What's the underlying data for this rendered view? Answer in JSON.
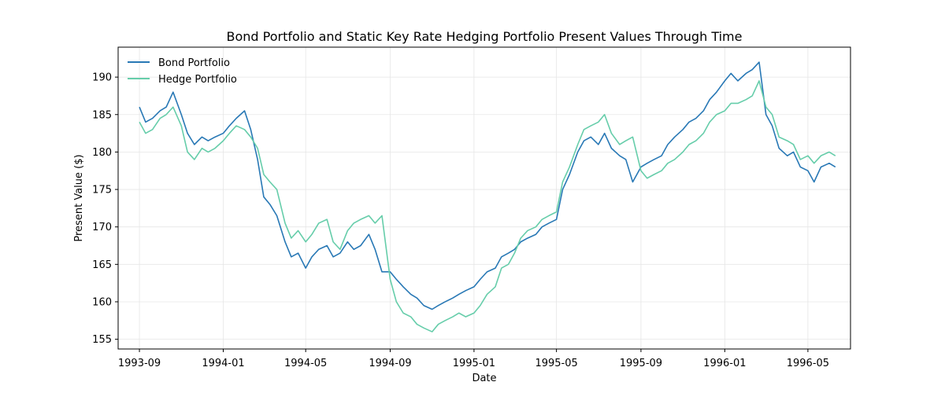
{
  "chart_data": {
    "type": "line",
    "title": "Bond Portfolio and Static Key Rate Hedging Portfolio Present Values Through Time",
    "xlabel": "Date",
    "ylabel": "Present Value ($)",
    "x_ticks": [
      "1993-09",
      "1994-01",
      "1994-05",
      "1994-09",
      "1995-01",
      "1995-05",
      "1995-09",
      "1996-01",
      "1996-05"
    ],
    "y_ticks": [
      155,
      160,
      165,
      170,
      175,
      180,
      185,
      190
    ],
    "xlim": [
      "1993-08-01",
      "1996-07-02"
    ],
    "ylim": [
      153.7,
      194.0
    ],
    "grid": true,
    "legend_position": "top-left",
    "series": [
      {
        "name": "Bond Portfolio",
        "color": "#2878b5",
        "points": [
          [
            "1993-09-01",
            186.0
          ],
          [
            "1993-09-10",
            184.0
          ],
          [
            "1993-09-20",
            184.5
          ],
          [
            "1993-10-01",
            185.5
          ],
          [
            "1993-10-10",
            186.0
          ],
          [
            "1993-10-20",
            188.0
          ],
          [
            "1993-11-01",
            185.0
          ],
          [
            "1993-11-10",
            182.5
          ],
          [
            "1993-11-20",
            181.0
          ],
          [
            "1993-12-01",
            182.0
          ],
          [
            "1993-12-10",
            181.5
          ],
          [
            "1993-12-20",
            182.0
          ],
          [
            "1994-01-01",
            182.5
          ],
          [
            "1994-01-10",
            183.5
          ],
          [
            "1994-01-20",
            184.5
          ],
          [
            "1994-02-01",
            185.5
          ],
          [
            "1994-02-10",
            183.0
          ],
          [
            "1994-02-20",
            179.0
          ],
          [
            "1994-03-01",
            174.0
          ],
          [
            "1994-03-10",
            173.0
          ],
          [
            "1994-03-20",
            171.5
          ],
          [
            "1994-04-01",
            168.0
          ],
          [
            "1994-04-10",
            166.0
          ],
          [
            "1994-04-20",
            166.5
          ],
          [
            "1994-05-01",
            164.5
          ],
          [
            "1994-05-10",
            166.0
          ],
          [
            "1994-05-20",
            167.0
          ],
          [
            "1994-06-01",
            167.5
          ],
          [
            "1994-06-10",
            166.0
          ],
          [
            "1994-06-20",
            166.5
          ],
          [
            "1994-07-01",
            168.0
          ],
          [
            "1994-07-10",
            167.0
          ],
          [
            "1994-07-20",
            167.5
          ],
          [
            "1994-08-01",
            169.0
          ],
          [
            "1994-08-10",
            167.0
          ],
          [
            "1994-08-20",
            164.0
          ],
          [
            "1994-09-01",
            164.0
          ],
          [
            "1994-09-10",
            163.0
          ],
          [
            "1994-09-20",
            162.0
          ],
          [
            "1994-10-01",
            161.0
          ],
          [
            "1994-10-10",
            160.5
          ],
          [
            "1994-10-20",
            159.5
          ],
          [
            "1994-11-01",
            159.0
          ],
          [
            "1994-11-10",
            159.5
          ],
          [
            "1994-11-20",
            160.0
          ],
          [
            "1994-12-01",
            160.5
          ],
          [
            "1994-12-10",
            161.0
          ],
          [
            "1994-12-20",
            161.5
          ],
          [
            "1995-01-01",
            162.0
          ],
          [
            "1995-01-10",
            163.0
          ],
          [
            "1995-01-20",
            164.0
          ],
          [
            "1995-02-01",
            164.5
          ],
          [
            "1995-02-10",
            166.0
          ],
          [
            "1995-02-20",
            166.5
          ],
          [
            "1995-03-01",
            167.0
          ],
          [
            "1995-03-10",
            168.0
          ],
          [
            "1995-03-20",
            168.5
          ],
          [
            "1995-04-01",
            169.0
          ],
          [
            "1995-04-10",
            170.0
          ],
          [
            "1995-04-20",
            170.5
          ],
          [
            "1995-05-01",
            171.0
          ],
          [
            "1995-05-10",
            175.0
          ],
          [
            "1995-05-20",
            177.0
          ],
          [
            "1995-06-01",
            180.0
          ],
          [
            "1995-06-10",
            181.5
          ],
          [
            "1995-06-20",
            182.0
          ],
          [
            "1995-07-01",
            181.0
          ],
          [
            "1995-07-10",
            182.5
          ],
          [
            "1995-07-20",
            180.5
          ],
          [
            "1995-08-01",
            179.5
          ],
          [
            "1995-08-10",
            179.0
          ],
          [
            "1995-08-20",
            176.0
          ],
          [
            "1995-09-01",
            178.0
          ],
          [
            "1995-09-10",
            178.5
          ],
          [
            "1995-09-20",
            179.0
          ],
          [
            "1995-10-01",
            179.5
          ],
          [
            "1995-10-10",
            181.0
          ],
          [
            "1995-10-20",
            182.0
          ],
          [
            "1995-11-01",
            183.0
          ],
          [
            "1995-11-10",
            184.0
          ],
          [
            "1995-11-20",
            184.5
          ],
          [
            "1995-12-01",
            185.5
          ],
          [
            "1995-12-10",
            187.0
          ],
          [
            "1995-12-20",
            188.0
          ],
          [
            "1996-01-01",
            189.5
          ],
          [
            "1996-01-10",
            190.5
          ],
          [
            "1996-01-20",
            189.5
          ],
          [
            "1996-02-01",
            190.5
          ],
          [
            "1996-02-10",
            191.0
          ],
          [
            "1996-02-20",
            192.0
          ],
          [
            "1996-03-01",
            185.0
          ],
          [
            "1996-03-10",
            183.5
          ],
          [
            "1996-03-20",
            180.5
          ],
          [
            "1996-04-01",
            179.5
          ],
          [
            "1996-04-10",
            180.0
          ],
          [
            "1996-04-20",
            178.0
          ],
          [
            "1996-05-01",
            177.5
          ],
          [
            "1996-05-10",
            176.0
          ],
          [
            "1996-05-20",
            178.0
          ],
          [
            "1996-06-01",
            178.5
          ],
          [
            "1996-06-10",
            178.0
          ]
        ]
      },
      {
        "name": "Hedge Portfolio",
        "color": "#66cdaa",
        "points": [
          [
            "1993-09-01",
            184.0
          ],
          [
            "1993-09-10",
            182.5
          ],
          [
            "1993-09-20",
            183.0
          ],
          [
            "1993-10-01",
            184.5
          ],
          [
            "1993-10-10",
            185.0
          ],
          [
            "1993-10-20",
            186.0
          ],
          [
            "1993-11-01",
            183.5
          ],
          [
            "1993-11-10",
            180.0
          ],
          [
            "1993-11-20",
            179.0
          ],
          [
            "1993-12-01",
            180.5
          ],
          [
            "1993-12-10",
            180.0
          ],
          [
            "1993-12-20",
            180.5
          ],
          [
            "1994-01-01",
            181.5
          ],
          [
            "1994-01-10",
            182.5
          ],
          [
            "1994-01-20",
            183.5
          ],
          [
            "1994-02-01",
            183.0
          ],
          [
            "1994-02-10",
            182.0
          ],
          [
            "1994-02-20",
            180.5
          ],
          [
            "1994-03-01",
            177.0
          ],
          [
            "1994-03-10",
            176.0
          ],
          [
            "1994-03-20",
            175.0
          ],
          [
            "1994-04-01",
            170.5
          ],
          [
            "1994-04-10",
            168.5
          ],
          [
            "1994-04-20",
            169.5
          ],
          [
            "1994-05-01",
            168.0
          ],
          [
            "1994-05-10",
            169.0
          ],
          [
            "1994-05-20",
            170.5
          ],
          [
            "1994-06-01",
            171.0
          ],
          [
            "1994-06-10",
            168.0
          ],
          [
            "1994-06-20",
            167.0
          ],
          [
            "1994-07-01",
            169.5
          ],
          [
            "1994-07-10",
            170.5
          ],
          [
            "1994-07-20",
            171.0
          ],
          [
            "1994-08-01",
            171.5
          ],
          [
            "1994-08-10",
            170.5
          ],
          [
            "1994-08-20",
            171.5
          ],
          [
            "1994-09-01",
            163.0
          ],
          [
            "1994-09-10",
            160.0
          ],
          [
            "1994-09-20",
            158.5
          ],
          [
            "1994-10-01",
            158.0
          ],
          [
            "1994-10-10",
            157.0
          ],
          [
            "1994-10-20",
            156.5
          ],
          [
            "1994-11-01",
            156.0
          ],
          [
            "1994-11-10",
            157.0
          ],
          [
            "1994-11-20",
            157.5
          ],
          [
            "1994-12-01",
            158.0
          ],
          [
            "1994-12-10",
            158.5
          ],
          [
            "1994-12-20",
            158.0
          ],
          [
            "1995-01-01",
            158.5
          ],
          [
            "1995-01-10",
            159.5
          ],
          [
            "1995-01-20",
            161.0
          ],
          [
            "1995-02-01",
            162.0
          ],
          [
            "1995-02-10",
            164.5
          ],
          [
            "1995-02-20",
            165.0
          ],
          [
            "1995-03-01",
            166.5
          ],
          [
            "1995-03-10",
            168.5
          ],
          [
            "1995-03-20",
            169.5
          ],
          [
            "1995-04-01",
            170.0
          ],
          [
            "1995-04-10",
            171.0
          ],
          [
            "1995-04-20",
            171.5
          ],
          [
            "1995-05-01",
            172.0
          ],
          [
            "1995-05-10",
            176.0
          ],
          [
            "1995-05-20",
            178.0
          ],
          [
            "1995-06-01",
            181.0
          ],
          [
            "1995-06-10",
            183.0
          ],
          [
            "1995-06-20",
            183.5
          ],
          [
            "1995-07-01",
            184.0
          ],
          [
            "1995-07-10",
            185.0
          ],
          [
            "1995-07-20",
            182.5
          ],
          [
            "1995-08-01",
            181.0
          ],
          [
            "1995-08-10",
            181.5
          ],
          [
            "1995-08-20",
            182.0
          ],
          [
            "1995-09-01",
            177.5
          ],
          [
            "1995-09-10",
            176.5
          ],
          [
            "1995-09-20",
            177.0
          ],
          [
            "1995-10-01",
            177.5
          ],
          [
            "1995-10-10",
            178.5
          ],
          [
            "1995-10-20",
            179.0
          ],
          [
            "1995-11-01",
            180.0
          ],
          [
            "1995-11-10",
            181.0
          ],
          [
            "1995-11-20",
            181.5
          ],
          [
            "1995-12-01",
            182.5
          ],
          [
            "1995-12-10",
            184.0
          ],
          [
            "1995-12-20",
            185.0
          ],
          [
            "1996-01-01",
            185.5
          ],
          [
            "1996-01-10",
            186.5
          ],
          [
            "1996-01-20",
            186.5
          ],
          [
            "1996-02-01",
            187.0
          ],
          [
            "1996-02-10",
            187.5
          ],
          [
            "1996-02-20",
            189.5
          ],
          [
            "1996-03-01",
            186.0
          ],
          [
            "1996-03-10",
            185.0
          ],
          [
            "1996-03-20",
            182.0
          ],
          [
            "1996-04-01",
            181.5
          ],
          [
            "1996-04-10",
            181.0
          ],
          [
            "1996-04-20",
            179.0
          ],
          [
            "1996-05-01",
            179.5
          ],
          [
            "1996-05-10",
            178.5
          ],
          [
            "1996-05-20",
            179.5
          ],
          [
            "1996-06-01",
            180.0
          ],
          [
            "1996-06-10",
            179.5
          ]
        ]
      }
    ]
  }
}
